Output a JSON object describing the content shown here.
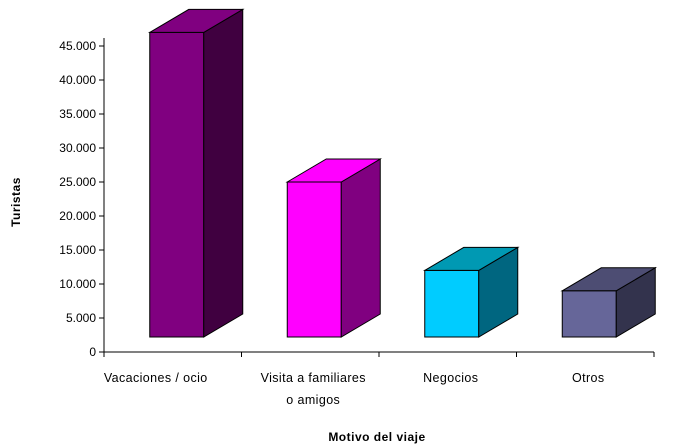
{
  "chart_data": {
    "type": "bar",
    "style": "3d-column",
    "categories": [
      [
        "Vacaciones / ocio"
      ],
      [
        "Visita a familiares",
        "o amigos"
      ],
      [
        "Negocios"
      ],
      [
        "Otros"
      ]
    ],
    "values": [
      47000,
      25000,
      12000,
      9000
    ],
    "xlabel": "Motivo del viaje",
    "ylabel": "Turistas",
    "ylim": [
      0,
      45000
    ],
    "yticks": [
      "0",
      "5.000",
      "10.000",
      "15.000",
      "20.000",
      "25.000",
      "30.000",
      "35.000",
      "40.000",
      "45.000"
    ],
    "grid": false,
    "legend": "none",
    "colors": [
      {
        "front": "#800080",
        "side": "#400040",
        "top": "#800080"
      },
      {
        "front": "#ff00ff",
        "side": "#800080",
        "top": "#ff00ff"
      },
      {
        "front": "#00ccff",
        "side": "#006680",
        "top": "#0099b3"
      },
      {
        "front": "#666699",
        "side": "#33334d",
        "top": "#4d4d73"
      }
    ]
  }
}
